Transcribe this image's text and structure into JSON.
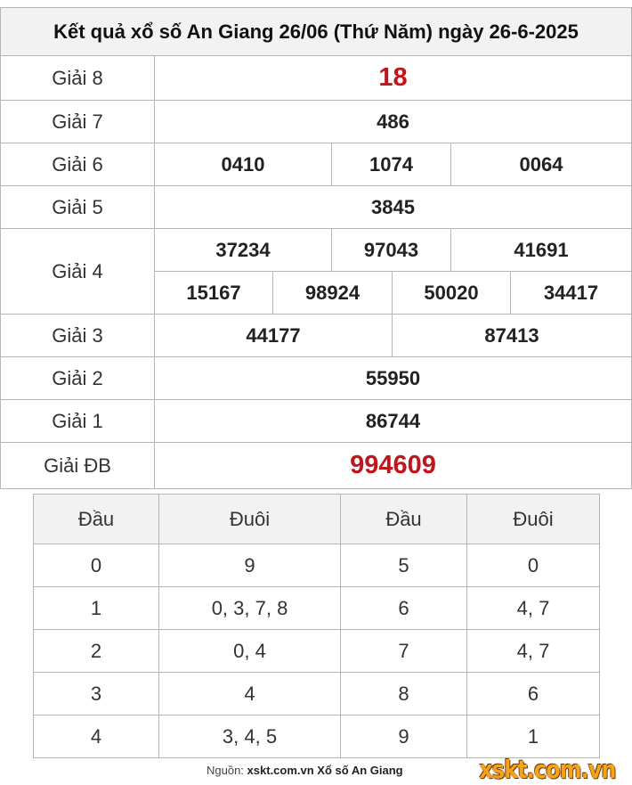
{
  "title": "Kết quả xổ số An Giang 26/06 (Thứ Năm) ngày 26-6-2025",
  "prizes": {
    "g8": {
      "label": "Giải 8",
      "values": [
        "18"
      ]
    },
    "g7": {
      "label": "Giải 7",
      "values": [
        "486"
      ]
    },
    "g6": {
      "label": "Giải 6",
      "values": [
        "0410",
        "1074",
        "0064"
      ]
    },
    "g5": {
      "label": "Giải 5",
      "values": [
        "3845"
      ]
    },
    "g4": {
      "label": "Giải 4",
      "values": [
        "37234",
        "97043",
        "41691",
        "15167",
        "98924",
        "50020",
        "34417"
      ]
    },
    "g3": {
      "label": "Giải 3",
      "values": [
        "44177",
        "87413"
      ]
    },
    "g2": {
      "label": "Giải 2",
      "values": [
        "55950"
      ]
    },
    "g1": {
      "label": "Giải 1",
      "values": [
        "86744"
      ]
    },
    "db": {
      "label": "Giải ĐB",
      "values": [
        "994609"
      ]
    }
  },
  "headtail": {
    "headers": [
      "Đầu",
      "Đuôi",
      "Đầu",
      "Đuôi"
    ],
    "rows": [
      [
        "0",
        "9",
        "5",
        "0"
      ],
      [
        "1",
        "0, 3, 7, 8",
        "6",
        "4, 7"
      ],
      [
        "2",
        "0, 4",
        "7",
        "4, 7"
      ],
      [
        "3",
        "4",
        "8",
        "6"
      ],
      [
        "4",
        "3, 4, 5",
        "9",
        "1"
      ]
    ]
  },
  "footer": {
    "prefix": "Nguồn:",
    "source": "xskt.com.vn Xổ số An Giang",
    "logo": "xskt.com.vn"
  },
  "colors": {
    "highlight": "#c0161b",
    "logo": "#f7a21b"
  }
}
